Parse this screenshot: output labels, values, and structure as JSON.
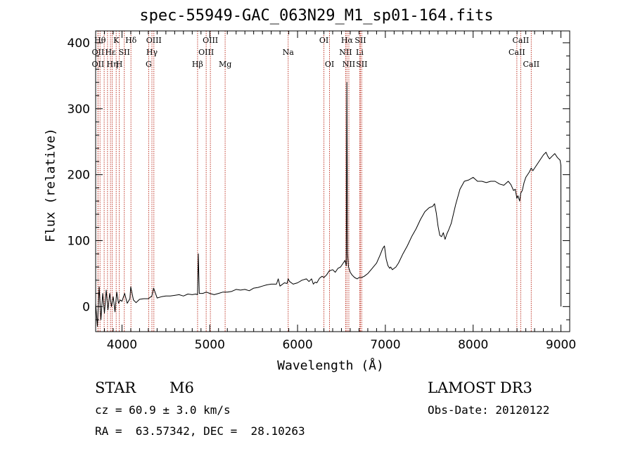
{
  "chart_data": {
    "type": "line",
    "title": "spec-55949-GAC_063N29_M1_sp01-164.fits",
    "xlabel": "Wavelength (Å)",
    "ylabel": "Flux (relative)",
    "xlim": [
      3700,
      9100
    ],
    "ylim": [
      -38,
      418
    ],
    "xticks": [
      4000,
      5000,
      6000,
      7000,
      8000,
      9000
    ],
    "xtick_labels": [
      "4000",
      "5000",
      "6000",
      "7000",
      "8000",
      "9000"
    ],
    "yticks": [
      0,
      100,
      200,
      300,
      400
    ],
    "ytick_labels": [
      "0",
      "100",
      "200",
      "300",
      "400"
    ],
    "x_minor_step": 100,
    "y_minor_step": 20,
    "series": [
      {
        "name": "flux",
        "color": "#000000",
        "x": [
          3700,
          3720,
          3740,
          3760,
          3780,
          3800,
          3820,
          3840,
          3860,
          3880,
          3900,
          3920,
          3940,
          3960,
          3980,
          4000,
          4030,
          4060,
          4090,
          4100,
          4130,
          4160,
          4200,
          4250,
          4300,
          4340,
          4360,
          4400,
          4450,
          4500,
          4550,
          4600,
          4650,
          4700,
          4750,
          4800,
          4840,
          4860,
          4870,
          4880,
          4920,
          4960,
          5000,
          5050,
          5100,
          5150,
          5200,
          5250,
          5300,
          5350,
          5400,
          5450,
          5500,
          5550,
          5600,
          5650,
          5700,
          5760,
          5780,
          5800,
          5850,
          5880,
          5893,
          5910,
          5950,
          6000,
          6050,
          6100,
          6130,
          6160,
          6180,
          6200,
          6220,
          6250,
          6280,
          6300,
          6330,
          6360,
          6400,
          6430,
          6460,
          6490,
          6520,
          6540,
          6555,
          6562,
          6570,
          6580,
          6600,
          6620,
          6650,
          6680,
          6700,
          6730,
          6760,
          6800,
          6850,
          6900,
          6940,
          6970,
          6990,
          7010,
          7030,
          7050,
          7060,
          7080,
          7100,
          7120,
          7150,
          7200,
          7250,
          7300,
          7350,
          7400,
          7450,
          7500,
          7540,
          7560,
          7580,
          7600,
          7620,
          7640,
          7660,
          7680,
          7700,
          7720,
          7750,
          7800,
          7850,
          7900,
          7950,
          8000,
          8050,
          8100,
          8150,
          8200,
          8250,
          8300,
          8350,
          8400,
          8430,
          8460,
          8480,
          8498,
          8510,
          8530,
          8542,
          8560,
          8580,
          8600,
          8640,
          8662,
          8680,
          8720,
          8760,
          8800,
          8830,
          8850,
          8870,
          8900,
          8930,
          8960,
          8990,
          9000,
          9001,
          9001
        ],
        "y": [
          5,
          -30,
          30,
          -20,
          20,
          -10,
          25,
          -5,
          20,
          0,
          15,
          -8,
          22,
          5,
          10,
          8,
          20,
          5,
          12,
          30,
          10,
          6,
          11,
          12,
          12,
          16,
          28,
          13,
          15,
          16,
          16,
          17,
          18,
          16,
          19,
          18,
          19,
          18,
          80,
          20,
          20,
          22,
          20,
          18,
          20,
          22,
          22,
          23,
          26,
          25,
          26,
          24,
          28,
          29,
          31,
          33,
          34,
          34,
          42,
          31,
          36,
          35,
          42,
          38,
          34,
          36,
          40,
          42,
          38,
          42,
          34,
          37,
          36,
          43,
          46,
          44,
          48,
          54,
          56,
          52,
          58,
          60,
          66,
          70,
          62,
          340,
          80,
          60,
          52,
          48,
          44,
          42,
          44,
          44,
          46,
          50,
          58,
          66,
          78,
          88,
          92,
          72,
          62,
          58,
          60,
          56,
          58,
          60,
          66,
          80,
          92,
          106,
          118,
          132,
          144,
          150,
          152,
          156,
          142,
          122,
          108,
          106,
          112,
          102,
          110,
          116,
          126,
          154,
          178,
          190,
          192,
          196,
          190,
          190,
          188,
          190,
          190,
          186,
          184,
          190,
          185,
          176,
          178,
          164,
          168,
          160,
          172,
          176,
          188,
          196,
          204,
          210,
          206,
          214,
          222,
          230,
          234,
          228,
          224,
          228,
          232,
          226,
          222,
          214,
          40,
          0
        ]
      }
    ],
    "lines": [
      {
        "x": 3750,
        "label": "Hθ",
        "row": 0
      },
      {
        "x": 3727,
        "label": "OII",
        "row": 1
      },
      {
        "x": 3727,
        "label": "OII",
        "row": 2
      },
      {
        "x": 3797,
        "label": "",
        "row": 0
      },
      {
        "x": 3835,
        "label": "",
        "row": 0
      },
      {
        "x": 3869,
        "label": "Hε",
        "row": 1
      },
      {
        "x": 3889,
        "label": "Hη",
        "row": 2
      },
      {
        "x": 3934,
        "label": "K",
        "row": 0
      },
      {
        "x": 3969,
        "label": "H",
        "row": 2
      },
      {
        "x": 4026,
        "label": "SII",
        "row": 1
      },
      {
        "x": 4102,
        "label": "Hδ",
        "row": 0
      },
      {
        "x": 4304,
        "label": "G",
        "row": 2
      },
      {
        "x": 4341,
        "label": "Hγ",
        "row": 1
      },
      {
        "x": 4363,
        "label": "OIII",
        "row": 0
      },
      {
        "x": 4861,
        "label": "Hβ",
        "row": 2
      },
      {
        "x": 4959,
        "label": "OIII",
        "row": 1
      },
      {
        "x": 5007,
        "label": "OIII",
        "row": 0
      },
      {
        "x": 5175,
        "label": "Mg",
        "row": 2
      },
      {
        "x": 5893,
        "label": "Na",
        "row": 1
      },
      {
        "x": 6300,
        "label": "OI",
        "row": 0
      },
      {
        "x": 6364,
        "label": "OI",
        "row": 2
      },
      {
        "x": 6548,
        "label": "NII",
        "row": 1
      },
      {
        "x": 6563,
        "label": "Hα",
        "row": 0
      },
      {
        "x": 6584,
        "label": "NII",
        "row": 2
      },
      {
        "x": 6708,
        "label": "Li",
        "row": 1
      },
      {
        "x": 6716,
        "label": "SII",
        "row": 0
      },
      {
        "x": 6731,
        "label": "SII",
        "row": 2
      },
      {
        "x": 8498,
        "label": "CaII",
        "row": 1
      },
      {
        "x": 8542,
        "label": "CaII",
        "row": 0
      },
      {
        "x": 8662,
        "label": "CaII",
        "row": 2
      }
    ]
  },
  "info": {
    "class_label": "STAR",
    "subclass": "M6",
    "survey": "LAMOST DR3",
    "cz": "cz = 60.9 ± 3.0 km/s",
    "obs_date": "Obs-Date: 20120122",
    "radec": "RA =  63.57342, DEC =  28.10263"
  },
  "colors": {
    "line_marker": "#c0392b",
    "axis": "#000000",
    "spectrum": "#000000"
  }
}
